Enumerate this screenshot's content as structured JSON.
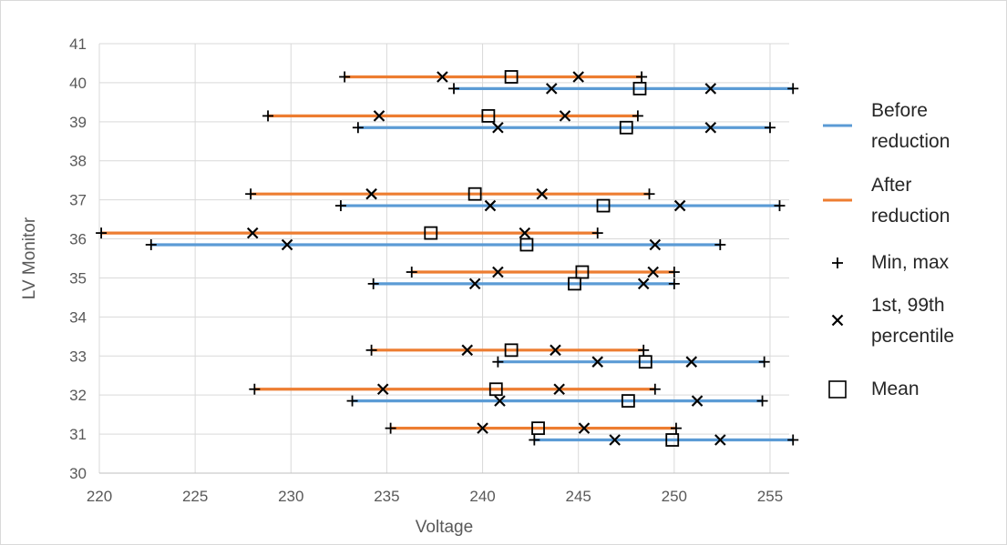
{
  "chart_data": {
    "type": "range",
    "title": "",
    "xlabel": "Voltage",
    "ylabel": "LV Monitor",
    "xlim": [
      220,
      256
    ],
    "ylim": [
      30,
      41
    ],
    "x_ticks": [
      "220",
      "225",
      "230",
      "235",
      "240",
      "245",
      "250",
      "255"
    ],
    "y_ticks": [
      "30",
      "31",
      "32",
      "33",
      "34",
      "35",
      "36",
      "37",
      "38",
      "39",
      "40",
      "41"
    ],
    "grid": true,
    "legend_position": "right",
    "legend": [
      {
        "label_lines": [
          "Before",
          "reduction"
        ],
        "kind": "line",
        "color": "#5b9bd5"
      },
      {
        "label_lines": [
          "After",
          "reduction"
        ],
        "kind": "line",
        "color": "#ed7d31"
      },
      {
        "label_lines": [
          "Min, max"
        ],
        "kind": "plus",
        "color": "#000000"
      },
      {
        "label_lines": [
          "1st, 99th",
          "percentile"
        ],
        "kind": "cross",
        "color": "#000000"
      },
      {
        "label_lines": [
          "Mean"
        ],
        "kind": "square",
        "color": "#000000"
      }
    ],
    "series": [
      {
        "name": "Before reduction",
        "color": "#5b9bd5",
        "ranges": [
          {
            "y": 30.85,
            "min": 242.7,
            "p1": 246.9,
            "mean": 249.9,
            "p99": 252.4,
            "max": 256.2
          },
          {
            "y": 31.85,
            "min": 233.2,
            "p1": 240.9,
            "mean": 247.6,
            "p99": 251.2,
            "max": 254.6
          },
          {
            "y": 32.85,
            "min": 240.8,
            "p1": 246.0,
            "mean": 248.5,
            "p99": 250.9,
            "max": 254.7
          },
          {
            "y": 34.85,
            "min": 234.3,
            "p1": 239.6,
            "mean": 244.8,
            "p99": 248.4,
            "max": 250.0
          },
          {
            "y": 35.85,
            "min": 222.7,
            "p1": 229.8,
            "mean": 242.3,
            "p99": 249.0,
            "max": 252.4
          },
          {
            "y": 36.85,
            "min": 232.6,
            "p1": 240.4,
            "mean": 246.3,
            "p99": 250.3,
            "max": 255.5
          },
          {
            "y": 38.85,
            "min": 233.5,
            "p1": 240.8,
            "mean": 247.5,
            "p99": 251.9,
            "max": 255.0
          },
          {
            "y": 39.85,
            "min": 238.5,
            "p1": 243.6,
            "mean": 248.2,
            "p99": 251.9,
            "max": 256.2
          }
        ]
      },
      {
        "name": "After reduction",
        "color": "#ed7d31",
        "ranges": [
          {
            "y": 31.15,
            "min": 235.2,
            "p1": 240.0,
            "mean": 242.9,
            "p99": 245.3,
            "max": 250.1
          },
          {
            "y": 32.15,
            "min": 228.1,
            "p1": 234.8,
            "mean": 240.7,
            "p99": 244.0,
            "max": 249.0
          },
          {
            "y": 33.15,
            "min": 234.2,
            "p1": 239.2,
            "mean": 241.5,
            "p99": 243.8,
            "max": 248.4
          },
          {
            "y": 35.15,
            "min": 236.3,
            "p1": 240.8,
            "mean": 245.2,
            "p99": 248.9,
            "max": 250.0
          },
          {
            "y": 36.15,
            "min": 220.1,
            "p1": 228.0,
            "mean": 237.3,
            "p99": 242.2,
            "max": 246.0
          },
          {
            "y": 37.15,
            "min": 227.9,
            "p1": 234.2,
            "mean": 239.6,
            "p99": 243.1,
            "max": 248.7
          },
          {
            "y": 39.15,
            "min": 228.8,
            "p1": 234.6,
            "mean": 240.3,
            "p99": 244.3,
            "max": 248.1
          },
          {
            "y": 40.15,
            "min": 232.8,
            "p1": 237.9,
            "mean": 241.5,
            "p99": 245.0,
            "max": 248.3
          }
        ]
      }
    ]
  }
}
